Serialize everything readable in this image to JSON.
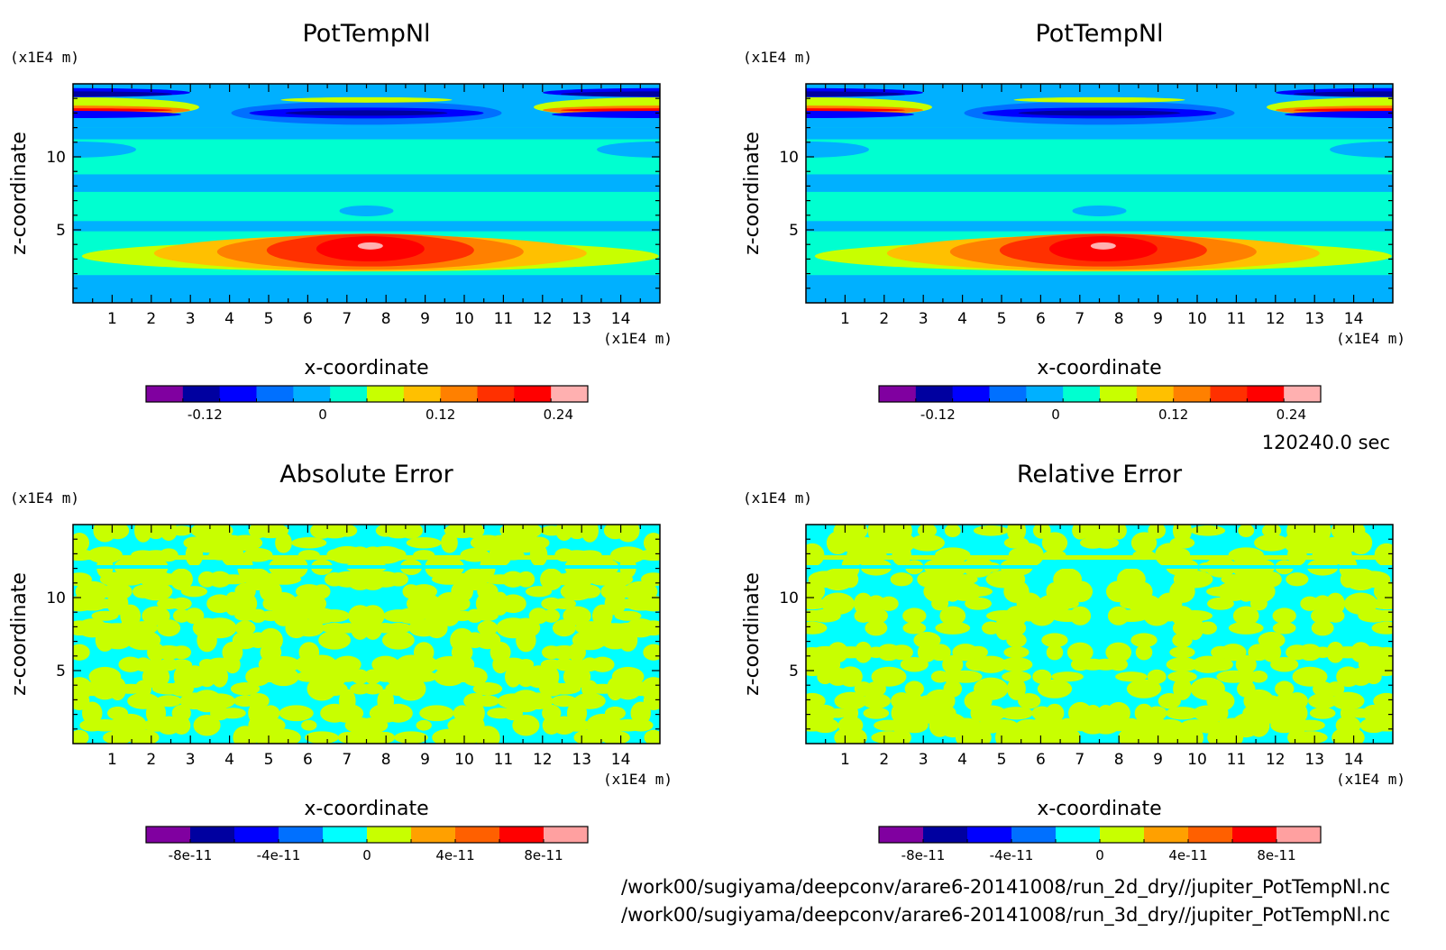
{
  "figure": {
    "time_label": "120240.0 sec",
    "file_paths": [
      "/work00/sugiyama/deepconv/arare6-20141008/run_2d_dry//jupiter_PotTempNl.nc",
      "/work00/sugiyama/deepconv/arare6-20141008/run_3d_dry//jupiter_PotTempNl.nc"
    ]
  },
  "chart_data": [
    {
      "type": "heatmap",
      "title": "PotTempNl",
      "xlabel": "x-coordinate",
      "ylabel": "z-coordinate",
      "x_unit": "(x1E4 m)",
      "y_unit": "(x1E4 m)",
      "xlim": [
        0,
        15
      ],
      "ylim": [
        0,
        15
      ],
      "xticks": [
        1,
        2,
        3,
        4,
        5,
        6,
        7,
        8,
        9,
        10,
        11,
        12,
        13,
        14
      ],
      "yticks": [
        5,
        10
      ],
      "colorbar_ticks": [
        -0.12,
        0,
        0.12,
        0.24
      ],
      "colorbar_tick_labels": [
        "-0.12",
        "0",
        "0.12",
        "0.24"
      ],
      "colorbar_range": [
        -0.18,
        0.27
      ],
      "colors": [
        "#8000a0",
        "#0000a0",
        "#0000ff",
        "#0070ff",
        "#00b0ff",
        "#00ffd0",
        "#c8ff00",
        "#ffc000",
        "#ff8000",
        "#ff3000",
        "#ff0000",
        "#ffb0b0"
      ]
    },
    {
      "type": "heatmap",
      "title": "PotTempNl",
      "xlabel": "x-coordinate",
      "ylabel": "z-coordinate",
      "x_unit": "(x1E4 m)",
      "y_unit": "(x1E4 m)",
      "xlim": [
        0,
        15
      ],
      "ylim": [
        0,
        15
      ],
      "xticks": [
        1,
        2,
        3,
        4,
        5,
        6,
        7,
        8,
        9,
        10,
        11,
        12,
        13,
        14
      ],
      "yticks": [
        5,
        10
      ],
      "colorbar_ticks": [
        -0.12,
        0,
        0.12,
        0.24
      ],
      "colorbar_tick_labels": [
        "-0.12",
        "0",
        "0.12",
        "0.24"
      ],
      "colorbar_range": [
        -0.18,
        0.27
      ],
      "colors": [
        "#8000a0",
        "#0000a0",
        "#0000ff",
        "#0070ff",
        "#00b0ff",
        "#00ffd0",
        "#c8ff00",
        "#ffc000",
        "#ff8000",
        "#ff3000",
        "#ff0000",
        "#ffb0b0"
      ]
    },
    {
      "type": "heatmap",
      "title": "Absolute Error",
      "xlabel": "x-coordinate",
      "ylabel": "z-coordinate",
      "x_unit": "(x1E4 m)",
      "y_unit": "(x1E4 m)",
      "xlim": [
        0,
        15
      ],
      "ylim": [
        0,
        15
      ],
      "xticks": [
        1,
        2,
        3,
        4,
        5,
        6,
        7,
        8,
        9,
        10,
        11,
        12,
        13,
        14
      ],
      "yticks": [
        5,
        10
      ],
      "colorbar_ticks": [
        -8e-11,
        -4e-11,
        0,
        4e-11,
        8e-11
      ],
      "colorbar_tick_labels": [
        "-8e-11",
        "-4e-11",
        "0",
        "4e-11",
        "8e-11"
      ],
      "colorbar_range": [
        -1e-10,
        1e-10
      ],
      "colors": [
        "#8000a0",
        "#0000a0",
        "#0000ff",
        "#0070ff",
        "#00ffff",
        "#c8ff00",
        "#ffa000",
        "#ff6000",
        "#ff0000",
        "#ffa0a0"
      ]
    },
    {
      "type": "heatmap",
      "title": "Relative Error",
      "xlabel": "x-coordinate",
      "ylabel": "z-coordinate",
      "x_unit": "(x1E4 m)",
      "y_unit": "(x1E4 m)",
      "xlim": [
        0,
        15
      ],
      "ylim": [
        0,
        15
      ],
      "xticks": [
        1,
        2,
        3,
        4,
        5,
        6,
        7,
        8,
        9,
        10,
        11,
        12,
        13,
        14
      ],
      "yticks": [
        5,
        10
      ],
      "colorbar_ticks": [
        -8e-11,
        -4e-11,
        0,
        4e-11,
        8e-11
      ],
      "colorbar_tick_labels": [
        "-8e-11",
        "-4e-11",
        "0",
        "4e-11",
        "8e-11"
      ],
      "colorbar_range": [
        -1e-10,
        1e-10
      ],
      "colors": [
        "#8000a0",
        "#0000a0",
        "#0000ff",
        "#0070ff",
        "#00ffff",
        "#c8ff00",
        "#ffa000",
        "#ff6000",
        "#ff0000",
        "#ffa0a0"
      ]
    }
  ]
}
